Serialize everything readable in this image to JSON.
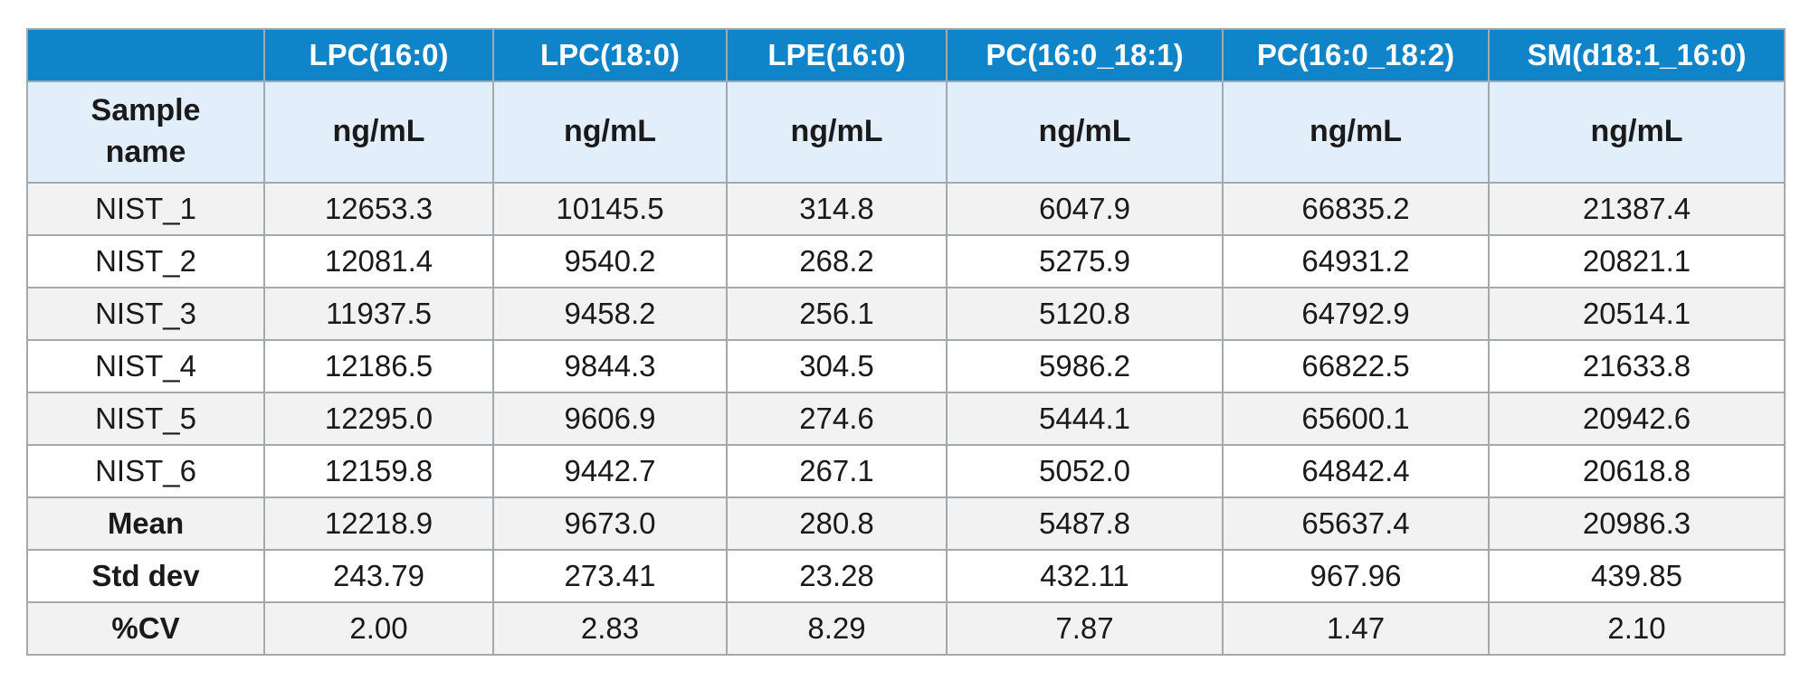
{
  "chart_data": {
    "type": "table",
    "header": {
      "corner": "",
      "compounds": [
        "LPC(16:0)",
        "LPC(18:0)",
        "LPE(16:0)",
        "PC(16:0_18:1)",
        "PC(16:0_18:2)",
        "SM(d18:1_16:0)"
      ],
      "sample_column_label": "Sample name",
      "units": [
        "ng/mL",
        "ng/mL",
        "ng/mL",
        "ng/mL",
        "ng/mL",
        "ng/mL"
      ]
    },
    "rows": [
      {
        "label": "NIST_1",
        "values": [
          "12653.3",
          "10145.5",
          "314.8",
          "6047.9",
          "66835.2",
          "21387.4"
        ]
      },
      {
        "label": "NIST_2",
        "values": [
          "12081.4",
          "9540.2",
          "268.2",
          "5275.9",
          "64931.2",
          "20821.1"
        ]
      },
      {
        "label": "NIST_3",
        "values": [
          "11937.5",
          "9458.2",
          "256.1",
          "5120.8",
          "64792.9",
          "20514.1"
        ]
      },
      {
        "label": "NIST_4",
        "values": [
          "12186.5",
          "9844.3",
          "304.5",
          "5986.2",
          "66822.5",
          "21633.8"
        ]
      },
      {
        "label": "NIST_5",
        "values": [
          "12295.0",
          "9606.9",
          "274.6",
          "5444.1",
          "65600.1",
          "20942.6"
        ]
      },
      {
        "label": "NIST_6",
        "values": [
          "12159.8",
          "9442.7",
          "267.1",
          "5052.0",
          "64842.4",
          "20618.8"
        ]
      },
      {
        "label": "Mean",
        "values": [
          "12218.9",
          "9673.0",
          "280.8",
          "5487.8",
          "65637.4",
          "20986.3"
        ],
        "bold_label": true
      },
      {
        "label": "Std dev",
        "values": [
          "243.79",
          "273.41",
          "23.28",
          "432.11",
          "967.96",
          "439.85"
        ],
        "bold_label": true
      },
      {
        "label": "%CV",
        "values": [
          "2.00",
          "2.83",
          "8.29",
          "7.87",
          "1.47",
          "2.10"
        ],
        "bold_label": true
      }
    ]
  },
  "colors": {
    "header_blue": "#0f84c9",
    "unit_row_bg": "#e2eef9",
    "row_shade": "#f2f2f2",
    "border": "#a3a9ad"
  }
}
